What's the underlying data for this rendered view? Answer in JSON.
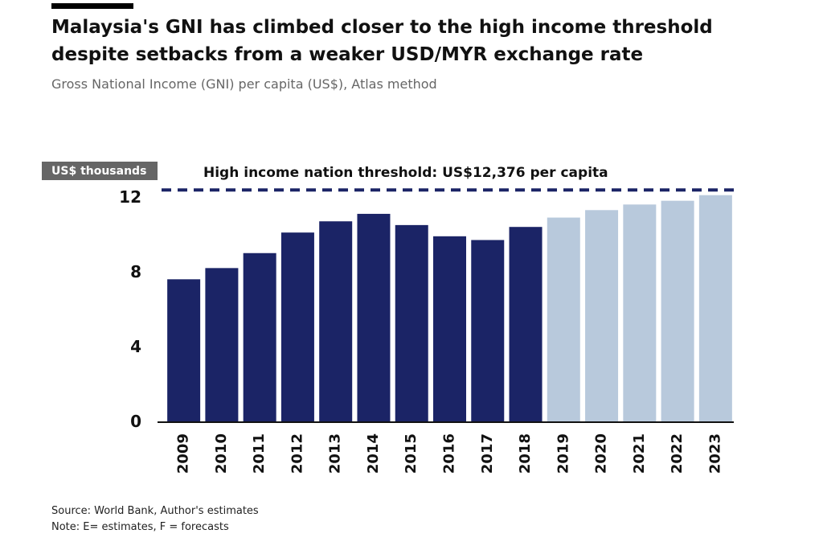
{
  "header": {
    "title_line1": "Malaysia's GNI has climbed closer to the high income threshold",
    "title_line2": "despite setbacks from a weaker USD/MYR exchange rate",
    "subtitle": "Gross National Income (GNI) per capita (US$), Atlas method"
  },
  "footer": {
    "source": "Source: World Bank, Author's estimates",
    "note": "Note: E= estimates, F = forecasts"
  },
  "colors": {
    "actual": "#1b2466",
    "estimate_forecast": "#b8c9dc",
    "threshold_line": "#1b2466",
    "axis_badge": "#666666"
  },
  "chart_data": {
    "type": "bar",
    "title": "Malaysia's GNI has climbed closer to the high income threshold despite setbacks from a weaker USD/MYR exchange rate",
    "subtitle": "Gross National Income (GNI) per capita (US$), Atlas method",
    "xlabel": "",
    "ylabel": "US$ thousands",
    "categories": [
      "2009",
      "2010",
      "2011",
      "2012",
      "2013",
      "2014",
      "2015",
      "2016",
      "2017",
      "2018",
      "2019",
      "2020",
      "2021",
      "2022",
      "2023"
    ],
    "values": [
      7.6,
      8.2,
      9.0,
      10.1,
      10.7,
      11.1,
      10.5,
      9.9,
      9.7,
      10.4,
      10.9,
      11.3,
      11.6,
      11.8,
      12.1
    ],
    "series": [
      {
        "values": [
          7.6,
          8.2,
          9.0,
          10.1,
          10.7,
          11.1,
          10.5,
          9.9,
          9.7,
          10.4,
          null,
          null,
          null,
          null,
          null
        ]
      },
      {
        "values": [
          null,
          null,
          null,
          null,
          null,
          null,
          null,
          null,
          null,
          null,
          10.9,
          11.3,
          11.6,
          11.8,
          12.1
        ]
      }
    ],
    "yticks": [
      0,
      4,
      8,
      12
    ],
    "ylim": [
      0,
      12.5
    ],
    "grid": false,
    "legend": "none",
    "reference_line": {
      "value": 12.376,
      "label": "High income nation threshold: US$12,376 per capita",
      "style": "dashed"
    }
  }
}
